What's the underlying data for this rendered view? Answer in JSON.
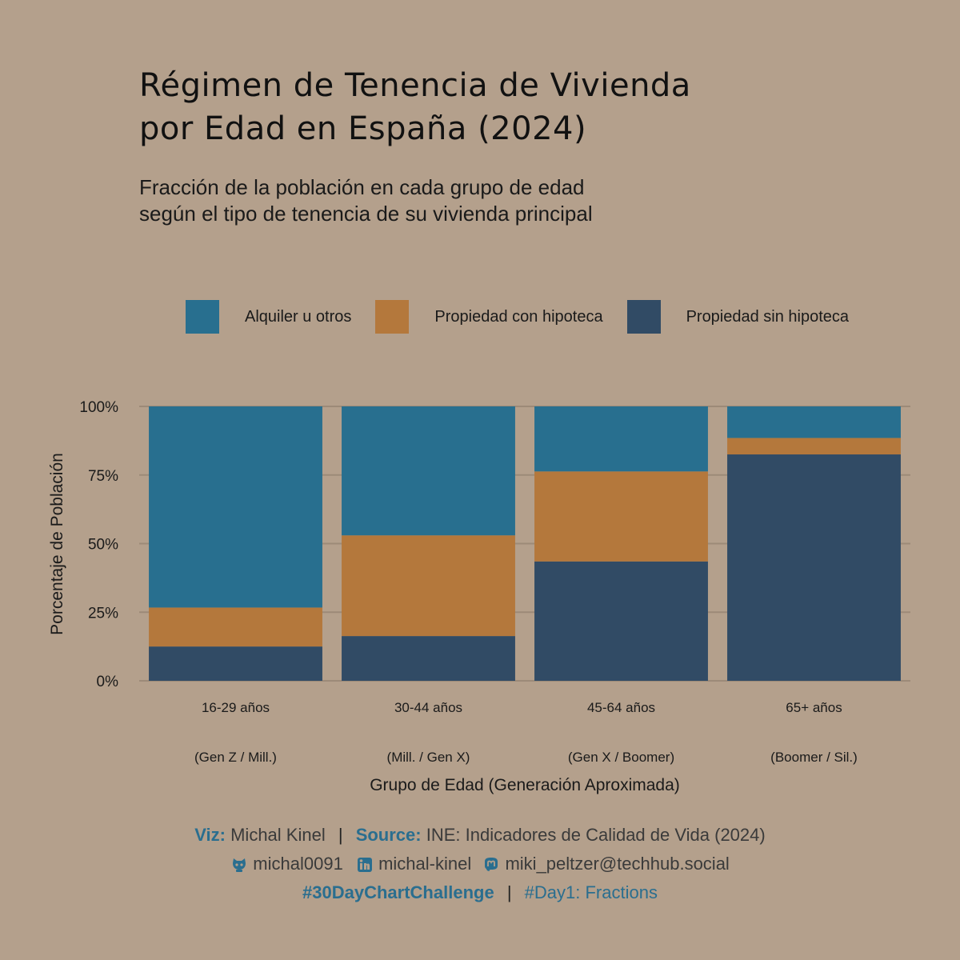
{
  "title": [
    "Régimen de Tenencia de Vivienda",
    "por Edad en España (2024)"
  ],
  "subtitle": [
    "Fracción de la población en cada grupo de edad",
    "según el tipo de tenencia de su vivienda principal"
  ],
  "legend": [
    {
      "label": "Alquiler u otros",
      "color": "#286f8f"
    },
    {
      "label": "Propiedad con hipoteca",
      "color": "#b4783c"
    },
    {
      "label": "Propiedad sin hipoteca",
      "color": "#314b65"
    }
  ],
  "chart_data": {
    "type": "bar",
    "stacked": true,
    "categories": [
      "16-29 años",
      "30-44 años",
      "45-64 años",
      "65+ años"
    ],
    "category_sublabels": [
      "(Gen Z / Mill.)",
      "(Mill. / Gen X)",
      "(Gen X / Boomer)",
      "(Boomer / Sil.)"
    ],
    "series": [
      {
        "name": "Propiedad sin hipoteca",
        "color": "#314b65",
        "values": [
          12.5,
          16.3,
          43.5,
          82.5
        ]
      },
      {
        "name": "Propiedad con hipoteca",
        "color": "#b4783c",
        "values": [
          14.2,
          36.7,
          32.8,
          6.0
        ]
      },
      {
        "name": "Alquiler u otros",
        "color": "#286f8f",
        "values": [
          73.3,
          47.0,
          23.7,
          11.5
        ]
      }
    ],
    "ylim": [
      0,
      100
    ],
    "yticks": [
      "0%",
      "25%",
      "50%",
      "75%",
      "100%"
    ],
    "xlabel": "Grupo de Edad (Generación Aproximada)",
    "ylabel": "Porcentaje de Población",
    "grid": true,
    "legend_position": "top"
  },
  "footer": {
    "viz_label": "Viz:",
    "viz_name": "Michal Kinel",
    "source_label": "Source:",
    "source_name": "INE: Indicadores de Calidad de Vida (2024)",
    "github": "michal0091",
    "linkedin": "michal-kinel",
    "mastodon": "miki_peltzer@techhub.social",
    "hashtag": "#30DayChartChallenge",
    "day": "#Day1: Fractions",
    "separator": "|",
    "github_icon": "github-icon",
    "linkedin_icon": "linkedin-icon",
    "mastodon_icon": "mastodon-icon"
  }
}
